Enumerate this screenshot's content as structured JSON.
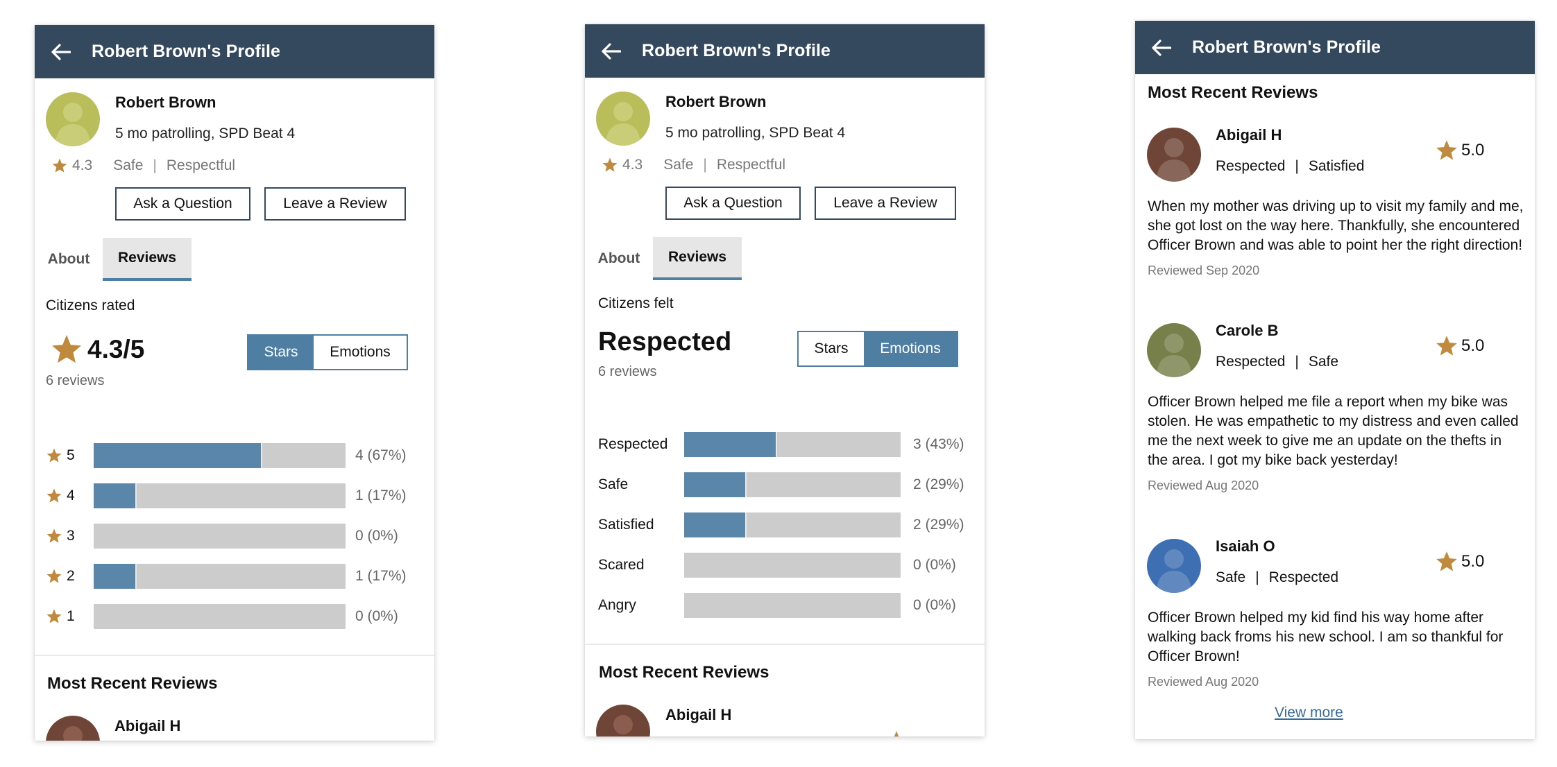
{
  "colors": {
    "header": "#34495e",
    "accent": "#4f7ea3",
    "bar_fill": "#5a86aa",
    "bar_track": "#cccccc",
    "star": "#c08a3e"
  },
  "icons": {
    "back": "arrow-left-icon",
    "star": "star-icon",
    "avatar": "person-avatar-icon"
  },
  "header": {
    "title": "Robert Brown's Profile"
  },
  "profile": {
    "name": "Robert Brown",
    "subtitle": "5 mo patrolling, SPD Beat 4",
    "rating": "4.3",
    "emotion_1": "Safe",
    "separator": "|",
    "emotion_2": "Respectful",
    "ask_button": "Ask a Question",
    "review_button": "Leave a Review"
  },
  "tabs": {
    "about": "About",
    "reviews": "Reviews"
  },
  "toggle": {
    "stars": "Stars",
    "emotions": "Emotions"
  },
  "stars_summary": {
    "label": "Citizens rated",
    "rating": "4.3/5",
    "count": "6 reviews",
    "rows": [
      {
        "label": "5",
        "fraction": 0.67,
        "value": "4 (67%)"
      },
      {
        "label": "4",
        "fraction": 0.17,
        "value": "1 (17%)"
      },
      {
        "label": "3",
        "fraction": 0,
        "value": "0 (0%)"
      },
      {
        "label": "2",
        "fraction": 0.17,
        "value": "1 (17%)"
      },
      {
        "label": "1",
        "fraction": 0,
        "value": "0 (0%)"
      }
    ]
  },
  "emotions_summary": {
    "label": "Citizens felt",
    "top_emotion": "Respected",
    "count": "6 reviews",
    "rows": [
      {
        "label": "Respected",
        "fraction": 0.43,
        "value": "3 (43%)"
      },
      {
        "label": "Safe",
        "fraction": 0.29,
        "value": "2 (29%)"
      },
      {
        "label": "Satisfied",
        "fraction": 0.29,
        "value": "2 (29%)"
      },
      {
        "label": "Scared",
        "fraction": 0,
        "value": "0 (0%)"
      },
      {
        "label": "Angry",
        "fraction": 0,
        "value": "0 (0%)"
      }
    ]
  },
  "recent": {
    "title": "Most Recent Reviews",
    "view_more": "View more",
    "reviews": [
      {
        "name": "Abigail H",
        "emotion_1": "Respected",
        "emotion_2": "Satisfied",
        "score": "5.0",
        "text": "When my mother was driving up to visit my family and me, she got lost on the way here. Thankfully, she encountered Officer Brown and was able to point her the right direction!",
        "date": "Reviewed Sep 2020",
        "avatar_color": "#6e4536"
      },
      {
        "name": "Carole B",
        "emotion_1": "Respected",
        "emotion_2": "Safe",
        "score": "5.0",
        "text": "Officer Brown helped me file a report when my bike was stolen. He was empathetic to my distress and even called me the next week to give me an update on the thefts in the area. I got my bike back yesterday!",
        "date": "Reviewed Aug 2020",
        "avatar_color": "#77804a"
      },
      {
        "name": "Isaiah O",
        "emotion_1": "Safe",
        "emotion_2": "Respected",
        "score": "5.0",
        "text": "Officer Brown helped my kid find his way home after walking back froms his new school. I am so thankful for Officer Brown!",
        "date": "Reviewed Aug 2020",
        "avatar_color": "#3f6fb3"
      }
    ]
  }
}
